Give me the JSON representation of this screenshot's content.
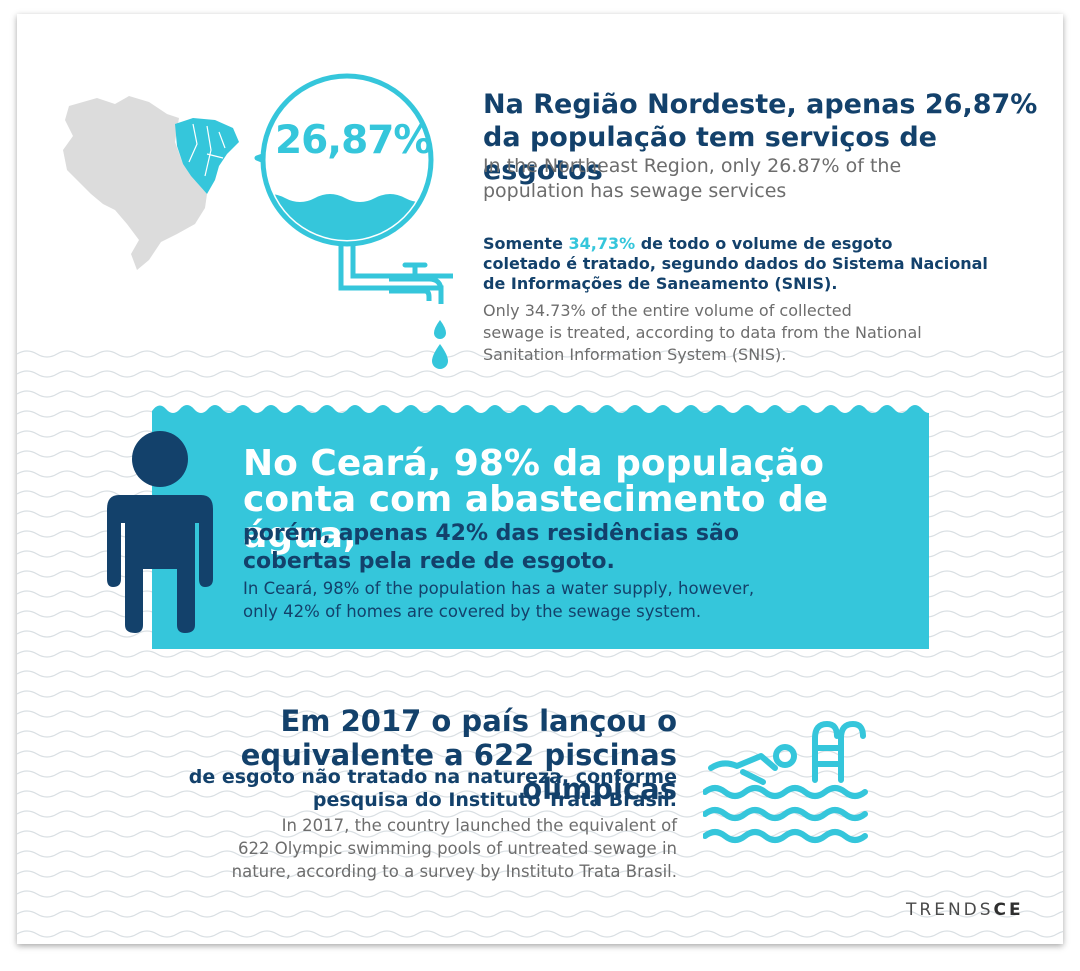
{
  "colors": {
    "navy": "#13416b",
    "cyan": "#35c6db",
    "gray_text": "#6d6d6d",
    "map_gray": "#dcdcdc",
    "wave_line": "#d9dfe3"
  },
  "section1": {
    "gauge_value": "26,87%",
    "title_lines": [
      "Na Região Nordeste, apenas 26,87%",
      "da população tem serviços de esgotos"
    ],
    "subtitle_lines": [
      "In the Northeast Region, only 26.87% of the",
      "population has sewage services"
    ]
  },
  "section2": {
    "title_pre": "Somente ",
    "title_highlight": "34,73%",
    "title_post": " de todo o volume de esgoto",
    "title_lines_rest": [
      "coletado é tratado, segundo dados do Sistema Nacional",
      "de Informações de Saneamento (SNIS)."
    ],
    "subtitle_lines": [
      "Only 34.73% of the entire volume of collected",
      "sewage is treated, according  to data from the National",
      "Sanitation Information System (SNIS)."
    ]
  },
  "section3": {
    "headline_lines": [
      "No Ceará, 98% da população",
      "conta com abastecimento de água,"
    ],
    "sub_lines": [
      "porém, apenas 42% das residências são",
      "cobertas pela rede de esgoto."
    ],
    "english_lines": [
      "In Ceará, 98% of the population has a water supply, however,",
      "only 42% of homes are covered by the sewage system."
    ]
  },
  "section4": {
    "title_lines": [
      "Em 2017 o país lançou o",
      "equivalente a 622 piscinas olímpicas"
    ],
    "subtitle_lines": [
      "de esgoto não tratado na natureza, conforme",
      "pesquisa do Instituto Trata Brasil."
    ],
    "english_lines": [
      "In 2017, the country launched the equivalent of",
      "622 Olympic swimming pools of untreated sewage in",
      "nature, according to a survey by Instituto Trata Brasil."
    ]
  },
  "logo": {
    "part1": "TRENDS",
    "part2": "CE"
  },
  "icons": {
    "map": "brazil-map-icon",
    "gauge": "water-gauge-icon",
    "faucet": "faucet-icon",
    "drops": "water-drop-icon",
    "person": "person-icon",
    "swimmer": "swimmer-icon",
    "ladder": "pool-ladder-icon"
  }
}
